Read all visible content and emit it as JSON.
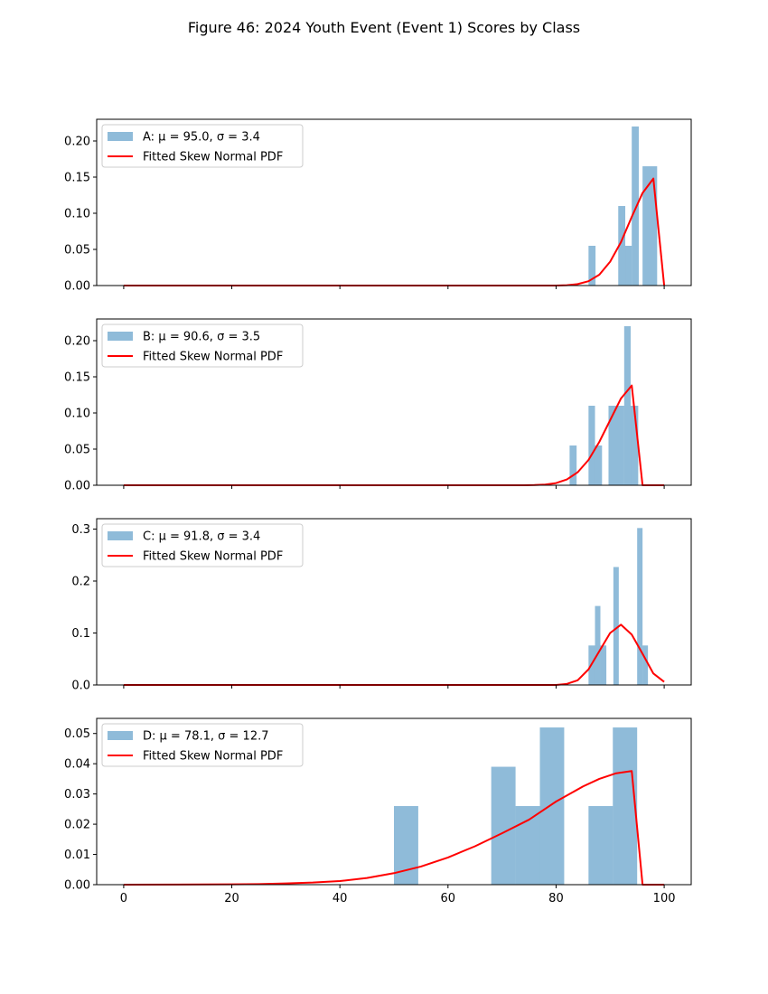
{
  "figure": {
    "title": "Figure 46: 2024 Youth Event (Event 1) Scores by Class"
  },
  "colors": {
    "histogram": "#1f77b4",
    "histogram_alpha": 0.5,
    "fit_line": "#ff0000"
  },
  "chart_data": [
    {
      "type": "bar",
      "subtype": "histogram-with-fitted-line",
      "legend": [
        "A: μ = 95.0, σ = 3.4",
        "Fitted Skew Normal PDF"
      ],
      "legend_position": "top-left",
      "xlim": [
        -5,
        105
      ],
      "ylim": [
        0,
        0.23
      ],
      "xticks": [
        0,
        20,
        40,
        60,
        80,
        100
      ],
      "yticks": [
        0.0,
        0.05,
        0.1,
        0.15,
        0.2
      ],
      "ytick_labels": [
        "0.00",
        "0.05",
        "0.10",
        "0.15",
        "0.20"
      ],
      "show_xtick_labels": false,
      "bins": [
        {
          "x0": 86.0,
          "x1": 87.3,
          "value": 0.055
        },
        {
          "x0": 91.5,
          "x1": 92.8,
          "value": 0.11
        },
        {
          "x0": 92.8,
          "x1": 94.0,
          "value": 0.055
        },
        {
          "x0": 94.0,
          "x1": 95.3,
          "value": 0.22
        },
        {
          "x0": 96.0,
          "x1": 98.7,
          "value": 0.165
        }
      ],
      "fit": {
        "x": [
          0,
          80,
          82,
          84,
          86,
          88,
          90,
          92,
          94,
          96,
          98,
          100
        ],
        "y": [
          0,
          0,
          0.0005,
          0.002,
          0.006,
          0.015,
          0.033,
          0.06,
          0.095,
          0.128,
          0.148,
          0
        ]
      }
    },
    {
      "type": "bar",
      "subtype": "histogram-with-fitted-line",
      "legend": [
        "B: μ = 90.6, σ = 3.5",
        "Fitted Skew Normal PDF"
      ],
      "legend_position": "top-left",
      "xlim": [
        -5,
        105
      ],
      "ylim": [
        0,
        0.23
      ],
      "xticks": [
        0,
        20,
        40,
        60,
        80,
        100
      ],
      "yticks": [
        0.0,
        0.05,
        0.1,
        0.15,
        0.2
      ],
      "ytick_labels": [
        "0.00",
        "0.05",
        "0.10",
        "0.15",
        "0.20"
      ],
      "show_xtick_labels": false,
      "bins": [
        {
          "x0": 82.5,
          "x1": 83.8,
          "value": 0.055
        },
        {
          "x0": 86.0,
          "x1": 87.2,
          "value": 0.11
        },
        {
          "x0": 87.2,
          "x1": 88.5,
          "value": 0.055
        },
        {
          "x0": 89.7,
          "x1": 92.6,
          "value": 0.11
        },
        {
          "x0": 92.6,
          "x1": 93.8,
          "value": 0.22
        },
        {
          "x0": 93.8,
          "x1": 95.2,
          "value": 0.11
        }
      ],
      "fit": {
        "x": [
          0,
          74,
          76,
          78,
          80,
          82,
          84,
          86,
          88,
          90,
          92,
          94,
          96,
          100
        ],
        "y": [
          0,
          0,
          0.0003,
          0.001,
          0.003,
          0.008,
          0.018,
          0.035,
          0.06,
          0.09,
          0.12,
          0.138,
          0,
          0
        ]
      }
    },
    {
      "type": "bar",
      "subtype": "histogram-with-fitted-line",
      "legend": [
        "C: μ = 91.8, σ = 3.4",
        "Fitted Skew Normal PDF"
      ],
      "legend_position": "top-left",
      "xlim": [
        -5,
        105
      ],
      "ylim": [
        0,
        0.32
      ],
      "xticks": [
        0,
        20,
        40,
        60,
        80,
        100
      ],
      "yticks": [
        0.0,
        0.1,
        0.2,
        0.3
      ],
      "ytick_labels": [
        "0.0",
        "0.1",
        "0.2",
        "0.3"
      ],
      "show_xtick_labels": false,
      "bins": [
        {
          "x0": 86.0,
          "x1": 87.2,
          "value": 0.076
        },
        {
          "x0": 87.2,
          "x1": 88.2,
          "value": 0.152
        },
        {
          "x0": 88.2,
          "x1": 89.3,
          "value": 0.076
        },
        {
          "x0": 90.6,
          "x1": 91.6,
          "value": 0.227
        },
        {
          "x0": 95.0,
          "x1": 96.0,
          "value": 0.302
        },
        {
          "x0": 96.0,
          "x1": 97.0,
          "value": 0.076
        }
      ],
      "fit": {
        "x": [
          0,
          80,
          82,
          84,
          86,
          88,
          90,
          92,
          94,
          96,
          98,
          100
        ],
        "y": [
          0,
          0,
          0.002,
          0.009,
          0.03,
          0.065,
          0.1,
          0.116,
          0.097,
          0.06,
          0.022,
          0.006
        ]
      }
    },
    {
      "type": "bar",
      "subtype": "histogram-with-fitted-line",
      "legend": [
        "D: μ = 78.1, σ = 12.7",
        "Fitted Skew Normal PDF"
      ],
      "legend_position": "top-left",
      "xlim": [
        -5,
        105
      ],
      "ylim": [
        0,
        0.055
      ],
      "xticks": [
        0,
        20,
        40,
        60,
        80,
        100
      ],
      "yticks": [
        0.0,
        0.01,
        0.02,
        0.03,
        0.04,
        0.05
      ],
      "ytick_labels": [
        "0.00",
        "0.01",
        "0.02",
        "0.03",
        "0.04",
        "0.05"
      ],
      "show_xtick_labels": true,
      "xtick_labels": [
        "0",
        "20",
        "40",
        "60",
        "80",
        "100"
      ],
      "bins": [
        {
          "x0": 50.0,
          "x1": 54.5,
          "value": 0.026
        },
        {
          "x0": 68.0,
          "x1": 72.5,
          "value": 0.039
        },
        {
          "x0": 72.5,
          "x1": 77.0,
          "value": 0.026
        },
        {
          "x0": 77.0,
          "x1": 81.5,
          "value": 0.052
        },
        {
          "x0": 86.0,
          "x1": 90.5,
          "value": 0.026
        },
        {
          "x0": 90.5,
          "x1": 95.0,
          "value": 0.052
        }
      ],
      "fit": {
        "x": [
          0,
          10,
          20,
          25,
          30,
          35,
          40,
          45,
          50,
          55,
          60,
          65,
          70,
          75,
          80,
          85,
          88,
          91,
          94,
          96,
          100
        ],
        "y": [
          0,
          5e-05,
          0.0001,
          0.0002,
          0.0004,
          0.0007,
          0.0012,
          0.0022,
          0.0038,
          0.006,
          0.009,
          0.0127,
          0.017,
          0.0215,
          0.0275,
          0.0325,
          0.035,
          0.0368,
          0.0376,
          0,
          0
        ]
      }
    }
  ]
}
